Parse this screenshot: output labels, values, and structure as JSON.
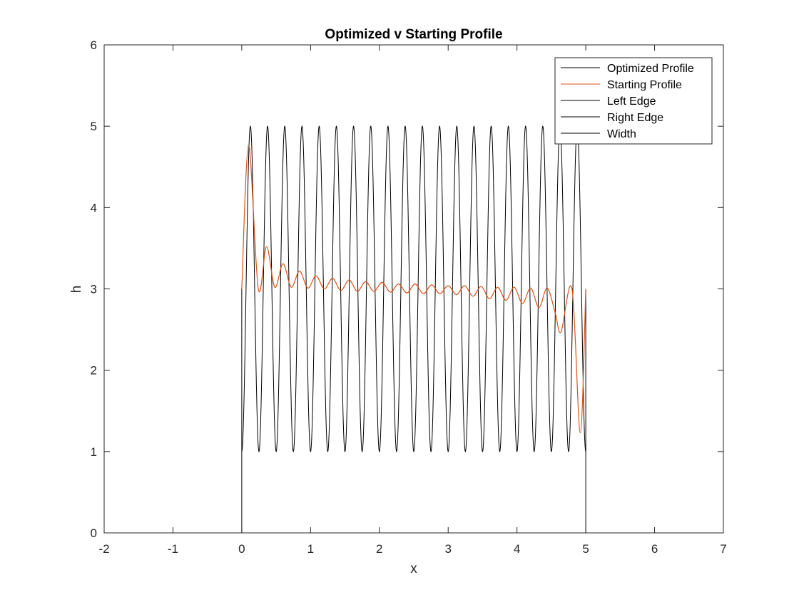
{
  "chart_data": {
    "type": "line",
    "title": "Optimized v Starting Profile",
    "xlabel": "x",
    "ylabel": "h",
    "xlim": [
      -2,
      7
    ],
    "ylim": [
      0,
      6
    ],
    "xticks": [
      -2,
      -1,
      0,
      1,
      2,
      3,
      4,
      5,
      6,
      7
    ],
    "yticks": [
      0,
      1,
      2,
      3,
      4,
      5,
      6
    ],
    "grid": false,
    "legend_location": "top-right",
    "series": [
      {
        "name": "Optimized Profile",
        "color": "#000000",
        "description_values": {
          "x_start": 0,
          "x_end": 5,
          "mean": 3,
          "amplitude": 2,
          "cycles": 20
        }
      },
      {
        "name": "Starting Profile",
        "color": "#D95319",
        "x": [
          0,
          0.1,
          0.24,
          0.36,
          0.48,
          0.6,
          0.72,
          0.84,
          0.96,
          1.08,
          1.2,
          1.32,
          1.44,
          1.56,
          1.68,
          1.8,
          1.92,
          2.04,
          2.16,
          2.28,
          2.4,
          2.52,
          2.64,
          2.76,
          2.88,
          3.0,
          3.12,
          3.24,
          3.36,
          3.48,
          3.6,
          3.72,
          3.84,
          3.96,
          4.08,
          4.2,
          4.32,
          4.44,
          4.56,
          4.64,
          4.8,
          4.92,
          5.0
        ],
        "y": [
          3.0,
          4.77,
          3.0,
          3.52,
          3.02,
          3.31,
          3.02,
          3.22,
          3.01,
          3.16,
          3.0,
          3.13,
          2.98,
          3.11,
          2.97,
          3.09,
          2.97,
          3.08,
          2.96,
          3.06,
          2.95,
          3.06,
          2.94,
          3.05,
          2.94,
          3.04,
          2.93,
          3.04,
          2.91,
          3.03,
          2.88,
          3.02,
          2.86,
          3.02,
          2.82,
          3.01,
          2.77,
          3.01,
          2.69,
          2.47,
          3.0,
          1.23,
          3.0
        ]
      },
      {
        "name": "Left Edge",
        "color": "#000000",
        "x": [
          0,
          0
        ],
        "y": [
          0,
          3
        ]
      },
      {
        "name": "Right Edge",
        "color": "#000000",
        "x": [
          5,
          5
        ],
        "y": [
          0,
          3
        ]
      },
      {
        "name": "Width",
        "color": "#000000",
        "x": [
          0,
          5
        ],
        "y": [
          0,
          0
        ]
      }
    ]
  }
}
